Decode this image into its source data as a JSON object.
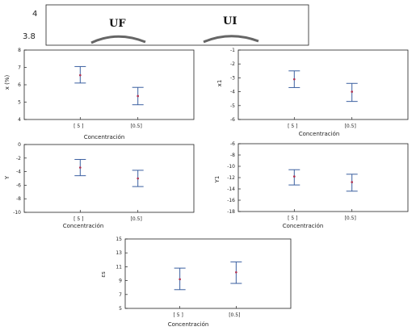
{
  "header": {
    "left_label": "UF",
    "right_label": "UI",
    "y_ticks": [
      "4",
      "3.8"
    ]
  },
  "chart_data": [
    {
      "type": "scatter",
      "ylabel": "x (%)",
      "xlabel": "Concentración",
      "categories": [
        "[ 5 ]",
        "[0.5]"
      ],
      "ylim": [
        4,
        8
      ],
      "yticks": [
        4,
        5,
        6,
        7,
        8
      ],
      "points": [
        {
          "mean": 6.55,
          "low": 6.1,
          "high": 7.05
        },
        {
          "mean": 5.35,
          "low": 4.85,
          "high": 5.85
        }
      ]
    },
    {
      "type": "scatter",
      "ylabel": "x1",
      "xlabel": "Concentración",
      "categories": [
        "[ 5 ]",
        "[0.5]"
      ],
      "ylim": [
        -6,
        -1
      ],
      "yticks": [
        -1,
        -2,
        -3,
        -4,
        -5,
        -6
      ],
      "points": [
        {
          "mean": -3.1,
          "low": -3.7,
          "high": -2.5
        },
        {
          "mean": -4.0,
          "low": -4.7,
          "high": -3.4
        }
      ]
    },
    {
      "type": "scatter",
      "ylabel": "Y",
      "xlabel": "Concentración",
      "categories": [
        "[ 5 ]",
        "[0.5]"
      ],
      "ylim": [
        -10,
        0
      ],
      "yticks": [
        0,
        -2,
        -4,
        -6,
        -8,
        -10
      ],
      "points": [
        {
          "mean": -3.4,
          "low": -4.6,
          "high": -2.2
        },
        {
          "mean": -5.0,
          "low": -6.2,
          "high": -3.8
        }
      ]
    },
    {
      "type": "scatter",
      "ylabel": "Y1",
      "xlabel": "Concentración",
      "categories": [
        "[ 5 ]",
        "[0.5]"
      ],
      "ylim": [
        -18,
        -6
      ],
      "yticks": [
        -6,
        -8,
        -10,
        -12,
        -14,
        -16,
        -18
      ],
      "points": [
        {
          "mean": -11.8,
          "low": -13.3,
          "high": -10.6
        },
        {
          "mean": -12.8,
          "low": -14.4,
          "high": -11.4
        }
      ]
    },
    {
      "type": "scatter",
      "ylabel": "εs",
      "xlabel": "Concentración",
      "categories": [
        "[ 5 ]",
        "[0.5]"
      ],
      "ylim": [
        5,
        15
      ],
      "yticks": [
        15,
        13,
        11,
        9,
        7,
        5
      ],
      "points": [
        {
          "mean": 9.2,
          "low": 7.7,
          "high": 10.8
        },
        {
          "mean": 10.2,
          "low": 8.6,
          "high": 11.7
        }
      ]
    }
  ],
  "colors": {
    "errorbar": "#3a5fa0",
    "marker": "#b03050",
    "axis": "#222222"
  }
}
